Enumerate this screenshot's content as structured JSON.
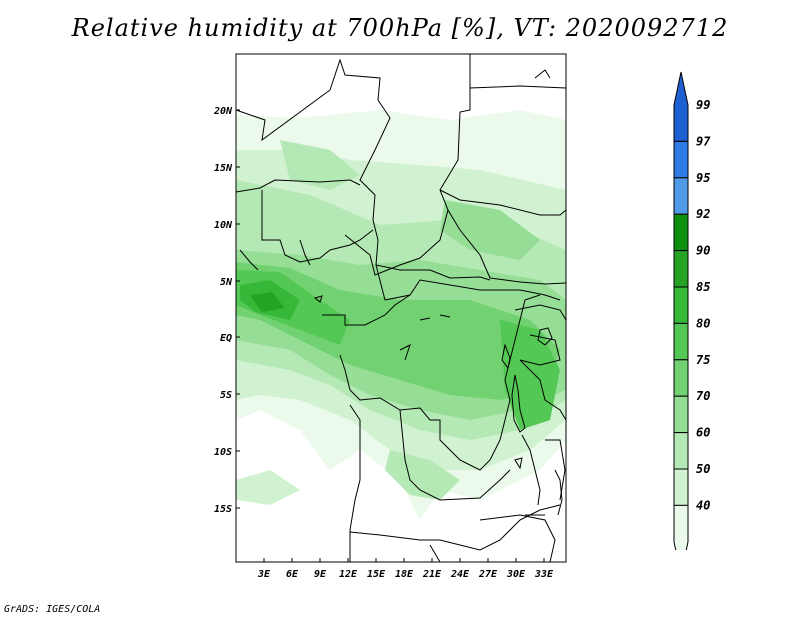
{
  "title": "Relative humidity at 700hPa [%], VT: 2020092712",
  "credit": "GrADS: IGES/COLA",
  "map": {
    "lat_ticks": [
      "20N",
      "15N",
      "10N",
      "5N",
      "EQ",
      "5S",
      "10S",
      "15S"
    ],
    "lon_ticks": [
      "3E",
      "6E",
      "9E",
      "12E",
      "15E",
      "18E",
      "21E",
      "24E",
      "27E",
      "30E",
      "33E"
    ]
  },
  "legend": {
    "levels": [
      "99",
      "97",
      "95",
      "92",
      "90",
      "85",
      "80",
      "75",
      "70",
      "60",
      "50",
      "40"
    ],
    "colors": [
      "#1e5fd2",
      "#2e7ae6",
      "#4f9be8",
      "#0f8f0f",
      "#25a325",
      "#38b838",
      "#54c854",
      "#72d272",
      "#96de96",
      "#b4e8b4",
      "#d0f2d0",
      "#ecfaec"
    ]
  }
}
